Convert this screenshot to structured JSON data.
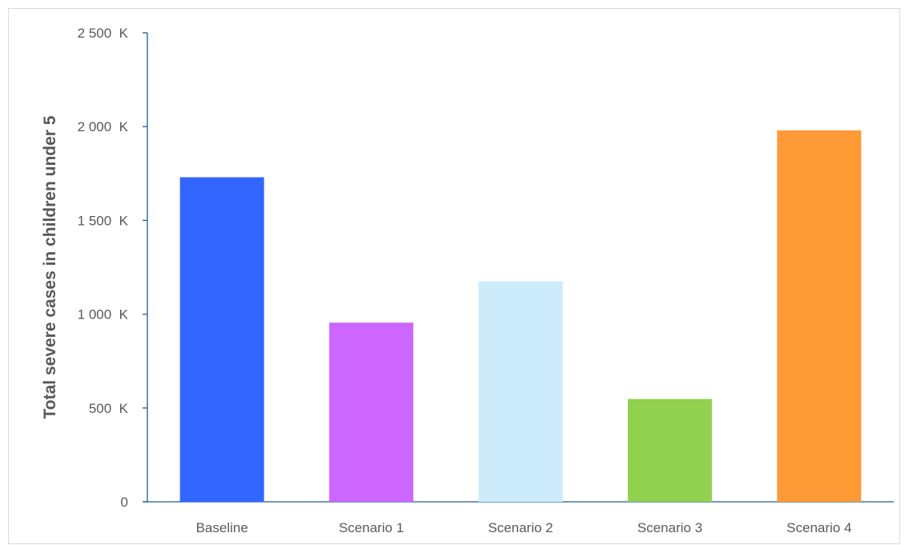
{
  "chart_data": {
    "type": "bar",
    "title": "",
    "xlabel": "",
    "ylabel": "Total severe cases in children under 5",
    "categories": [
      "Baseline",
      "Scenario 1",
      "Scenario 2",
      "Scenario 3",
      "Scenario 4"
    ],
    "values": [
      1730,
      955,
      1175,
      548,
      1980
    ],
    "value_unit_suffix": "K",
    "ylim": [
      0,
      2500
    ],
    "yticks": [
      {
        "value": 0,
        "label": "0"
      },
      {
        "value": 500,
        "label": "500  K"
      },
      {
        "value": 1000,
        "label": "1 000  K"
      },
      {
        "value": 1500,
        "label": "1 500  K"
      },
      {
        "value": 2000,
        "label": "2 000  K"
      },
      {
        "value": 2500,
        "label": "2 500  K"
      }
    ],
    "colors": [
      "#3366FF",
      "#CC66FF",
      "#CCECFB",
      "#92D050",
      "#FF9B37"
    ],
    "axis_color": "#1F5B8C",
    "grid": false,
    "legend": "none"
  }
}
